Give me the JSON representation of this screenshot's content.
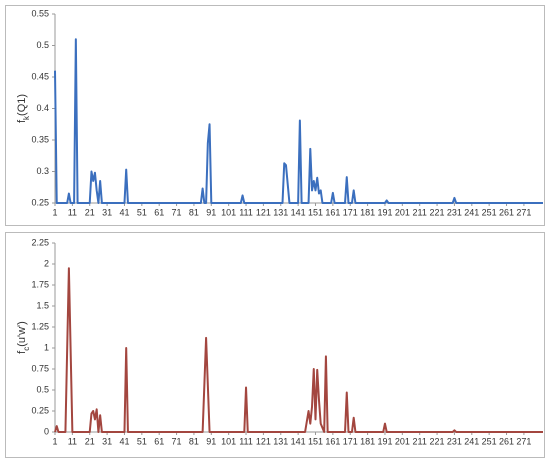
{
  "chart_data": [
    {
      "type": "line",
      "ylabel": [
        "f",
        "k",
        "(Q1)"
      ],
      "x": [
        1,
        2,
        8,
        9,
        10,
        12,
        13,
        14,
        21,
        22,
        23,
        24,
        25,
        26,
        27,
        28,
        41,
        42,
        43,
        85,
        86,
        87,
        88,
        89,
        90,
        91,
        108,
        109,
        110,
        132,
        133,
        134,
        135,
        136,
        141,
        142,
        143,
        147,
        148,
        149,
        150,
        151,
        152,
        153,
        154,
        155,
        160,
        161,
        162,
        168,
        169,
        170,
        172,
        173,
        174,
        191,
        192,
        193,
        230,
        231,
        232,
        282
      ],
      "series": [
        {
          "color": "#3b6fbe",
          "values": [
            0.46,
            0.25,
            0.25,
            0.265,
            0.25,
            0.25,
            0.51,
            0.25,
            0.25,
            0.3,
            0.285,
            0.298,
            0.27,
            0.25,
            0.285,
            0.25,
            0.25,
            0.303,
            0.25,
            0.25,
            0.273,
            0.25,
            0.25,
            0.345,
            0.375,
            0.25,
            0.25,
            0.262,
            0.25,
            0.25,
            0.313,
            0.31,
            0.28,
            0.25,
            0.25,
            0.381,
            0.25,
            0.25,
            0.336,
            0.27,
            0.285,
            0.27,
            0.29,
            0.265,
            0.27,
            0.25,
            0.25,
            0.266,
            0.25,
            0.25,
            0.291,
            0.25,
            0.25,
            0.27,
            0.25,
            0.25,
            0.254,
            0.25,
            0.25,
            0.258,
            0.25,
            0.25
          ]
        }
      ],
      "xlim": [
        1,
        282
      ],
      "xticks": [
        1,
        11,
        21,
        31,
        41,
        51,
        61,
        71,
        81,
        91,
        101,
        111,
        121,
        131,
        141,
        151,
        161,
        171,
        181,
        191,
        201,
        211,
        221,
        231,
        241,
        251,
        261,
        271
      ],
      "ylim": [
        0.25,
        0.55
      ],
      "yticks": [
        0.25,
        0.3,
        0.35,
        0.4,
        0.45,
        0.5,
        0.55
      ]
    },
    {
      "type": "line",
      "ylabel": [
        "f",
        "c",
        "(u'w')"
      ],
      "x": [
        1,
        2,
        3,
        7,
        9,
        11,
        21,
        22,
        23,
        24,
        25,
        26,
        27,
        28,
        41,
        42,
        43,
        86,
        88,
        90,
        110,
        111,
        112,
        145,
        147,
        148,
        149,
        150,
        151,
        152,
        153,
        154,
        156,
        157,
        158,
        168,
        169,
        170,
        172,
        173,
        174,
        190,
        191,
        192,
        230,
        231,
        232,
        282
      ],
      "series": [
        {
          "color": "#a3463f",
          "values": [
            0,
            0.07,
            0,
            0,
            1.95,
            0,
            0,
            0.22,
            0.25,
            0.15,
            0.27,
            0,
            0.2,
            0,
            0,
            1.0,
            0,
            0,
            1.12,
            0,
            0,
            0.53,
            0,
            0,
            0.25,
            0.1,
            0.3,
            0.75,
            0.15,
            0.74,
            0.38,
            0.1,
            0,
            0.9,
            0,
            0,
            0.47,
            0,
            0,
            0.17,
            0,
            0,
            0.1,
            0,
            0,
            0.02,
            0,
            0
          ]
        }
      ],
      "xlim": [
        1,
        282
      ],
      "xticks": [
        1,
        11,
        21,
        31,
        41,
        51,
        61,
        71,
        81,
        91,
        101,
        111,
        121,
        131,
        141,
        151,
        161,
        171,
        181,
        191,
        201,
        211,
        221,
        231,
        241,
        251,
        261,
        271
      ],
      "ylim": [
        0,
        2.25
      ],
      "yticks": [
        0,
        0.25,
        0.5,
        0.75,
        1,
        1.25,
        1.5,
        1.75,
        2,
        2.25
      ]
    }
  ]
}
